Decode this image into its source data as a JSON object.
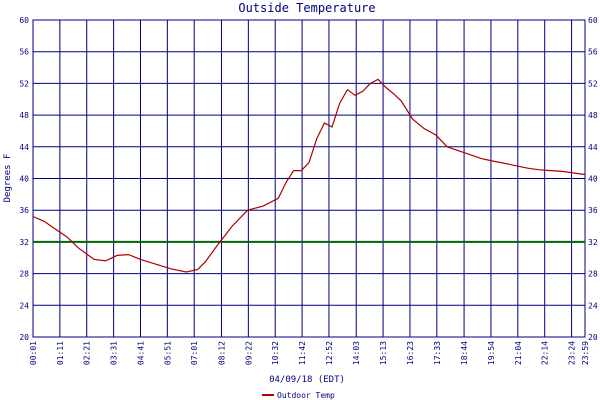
{
  "chart_data": {
    "type": "line",
    "title": "Outside Temperature",
    "xlabel": "04/09/18 (EDT)",
    "ylabel": "Degrees F",
    "ylim": [
      20,
      60
    ],
    "y_ticks": [
      "20",
      "24",
      "28",
      "32",
      "36",
      "40",
      "44",
      "48",
      "52",
      "56",
      "60"
    ],
    "x_tick_labels": [
      "00:01",
      "01:11",
      "02:21",
      "03:31",
      "04:41",
      "05:51",
      "07:01",
      "08:12",
      "09:22",
      "10:32",
      "11:42",
      "12:52",
      "14:03",
      "15:13",
      "16:23",
      "17:33",
      "18:44",
      "19:54",
      "21:04",
      "22:14",
      "23:24",
      "23:59"
    ],
    "x_tick_minutes": [
      1,
      71,
      141,
      211,
      281,
      351,
      421,
      492,
      562,
      632,
      702,
      772,
      843,
      913,
      983,
      1053,
      1124,
      1194,
      1264,
      1334,
      1404,
      1439
    ],
    "xlim_minutes": [
      1,
      1439
    ],
    "reference_line": {
      "value": 32,
      "color": "#006400"
    },
    "grid": true,
    "legend_position": "bottom-center",
    "series": [
      {
        "name": "Outdoor Temp",
        "color": "#b00000",
        "x_minutes": [
          1,
          30,
          60,
          90,
          120,
          160,
          190,
          220,
          250,
          280,
          320,
          360,
          400,
          430,
          450,
          480,
          520,
          560,
          600,
          640,
          660,
          680,
          700,
          720,
          740,
          760,
          780,
          800,
          820,
          840,
          860,
          880,
          900,
          920,
          940,
          960,
          990,
          1020,
          1050,
          1080,
          1110,
          1140,
          1170,
          1200,
          1230,
          1260,
          1290,
          1320,
          1350,
          1380,
          1410,
          1439
        ],
        "values": [
          35.2,
          34.6,
          33.6,
          32.6,
          31.2,
          29.8,
          29.6,
          30.3,
          30.4,
          29.8,
          29.2,
          28.6,
          28.2,
          28.5,
          29.5,
          31.5,
          34.0,
          36.0,
          36.5,
          37.5,
          39.5,
          41.0,
          41.0,
          42.0,
          45.0,
          47.0,
          46.5,
          49.5,
          51.2,
          50.5,
          51.0,
          52.0,
          52.5,
          51.5,
          50.7,
          49.8,
          47.5,
          46.3,
          45.5,
          44.0,
          43.5,
          43.0,
          42.5,
          42.2,
          41.9,
          41.6,
          41.3,
          41.1,
          41.0,
          40.9,
          40.7,
          40.5
        ]
      }
    ]
  }
}
